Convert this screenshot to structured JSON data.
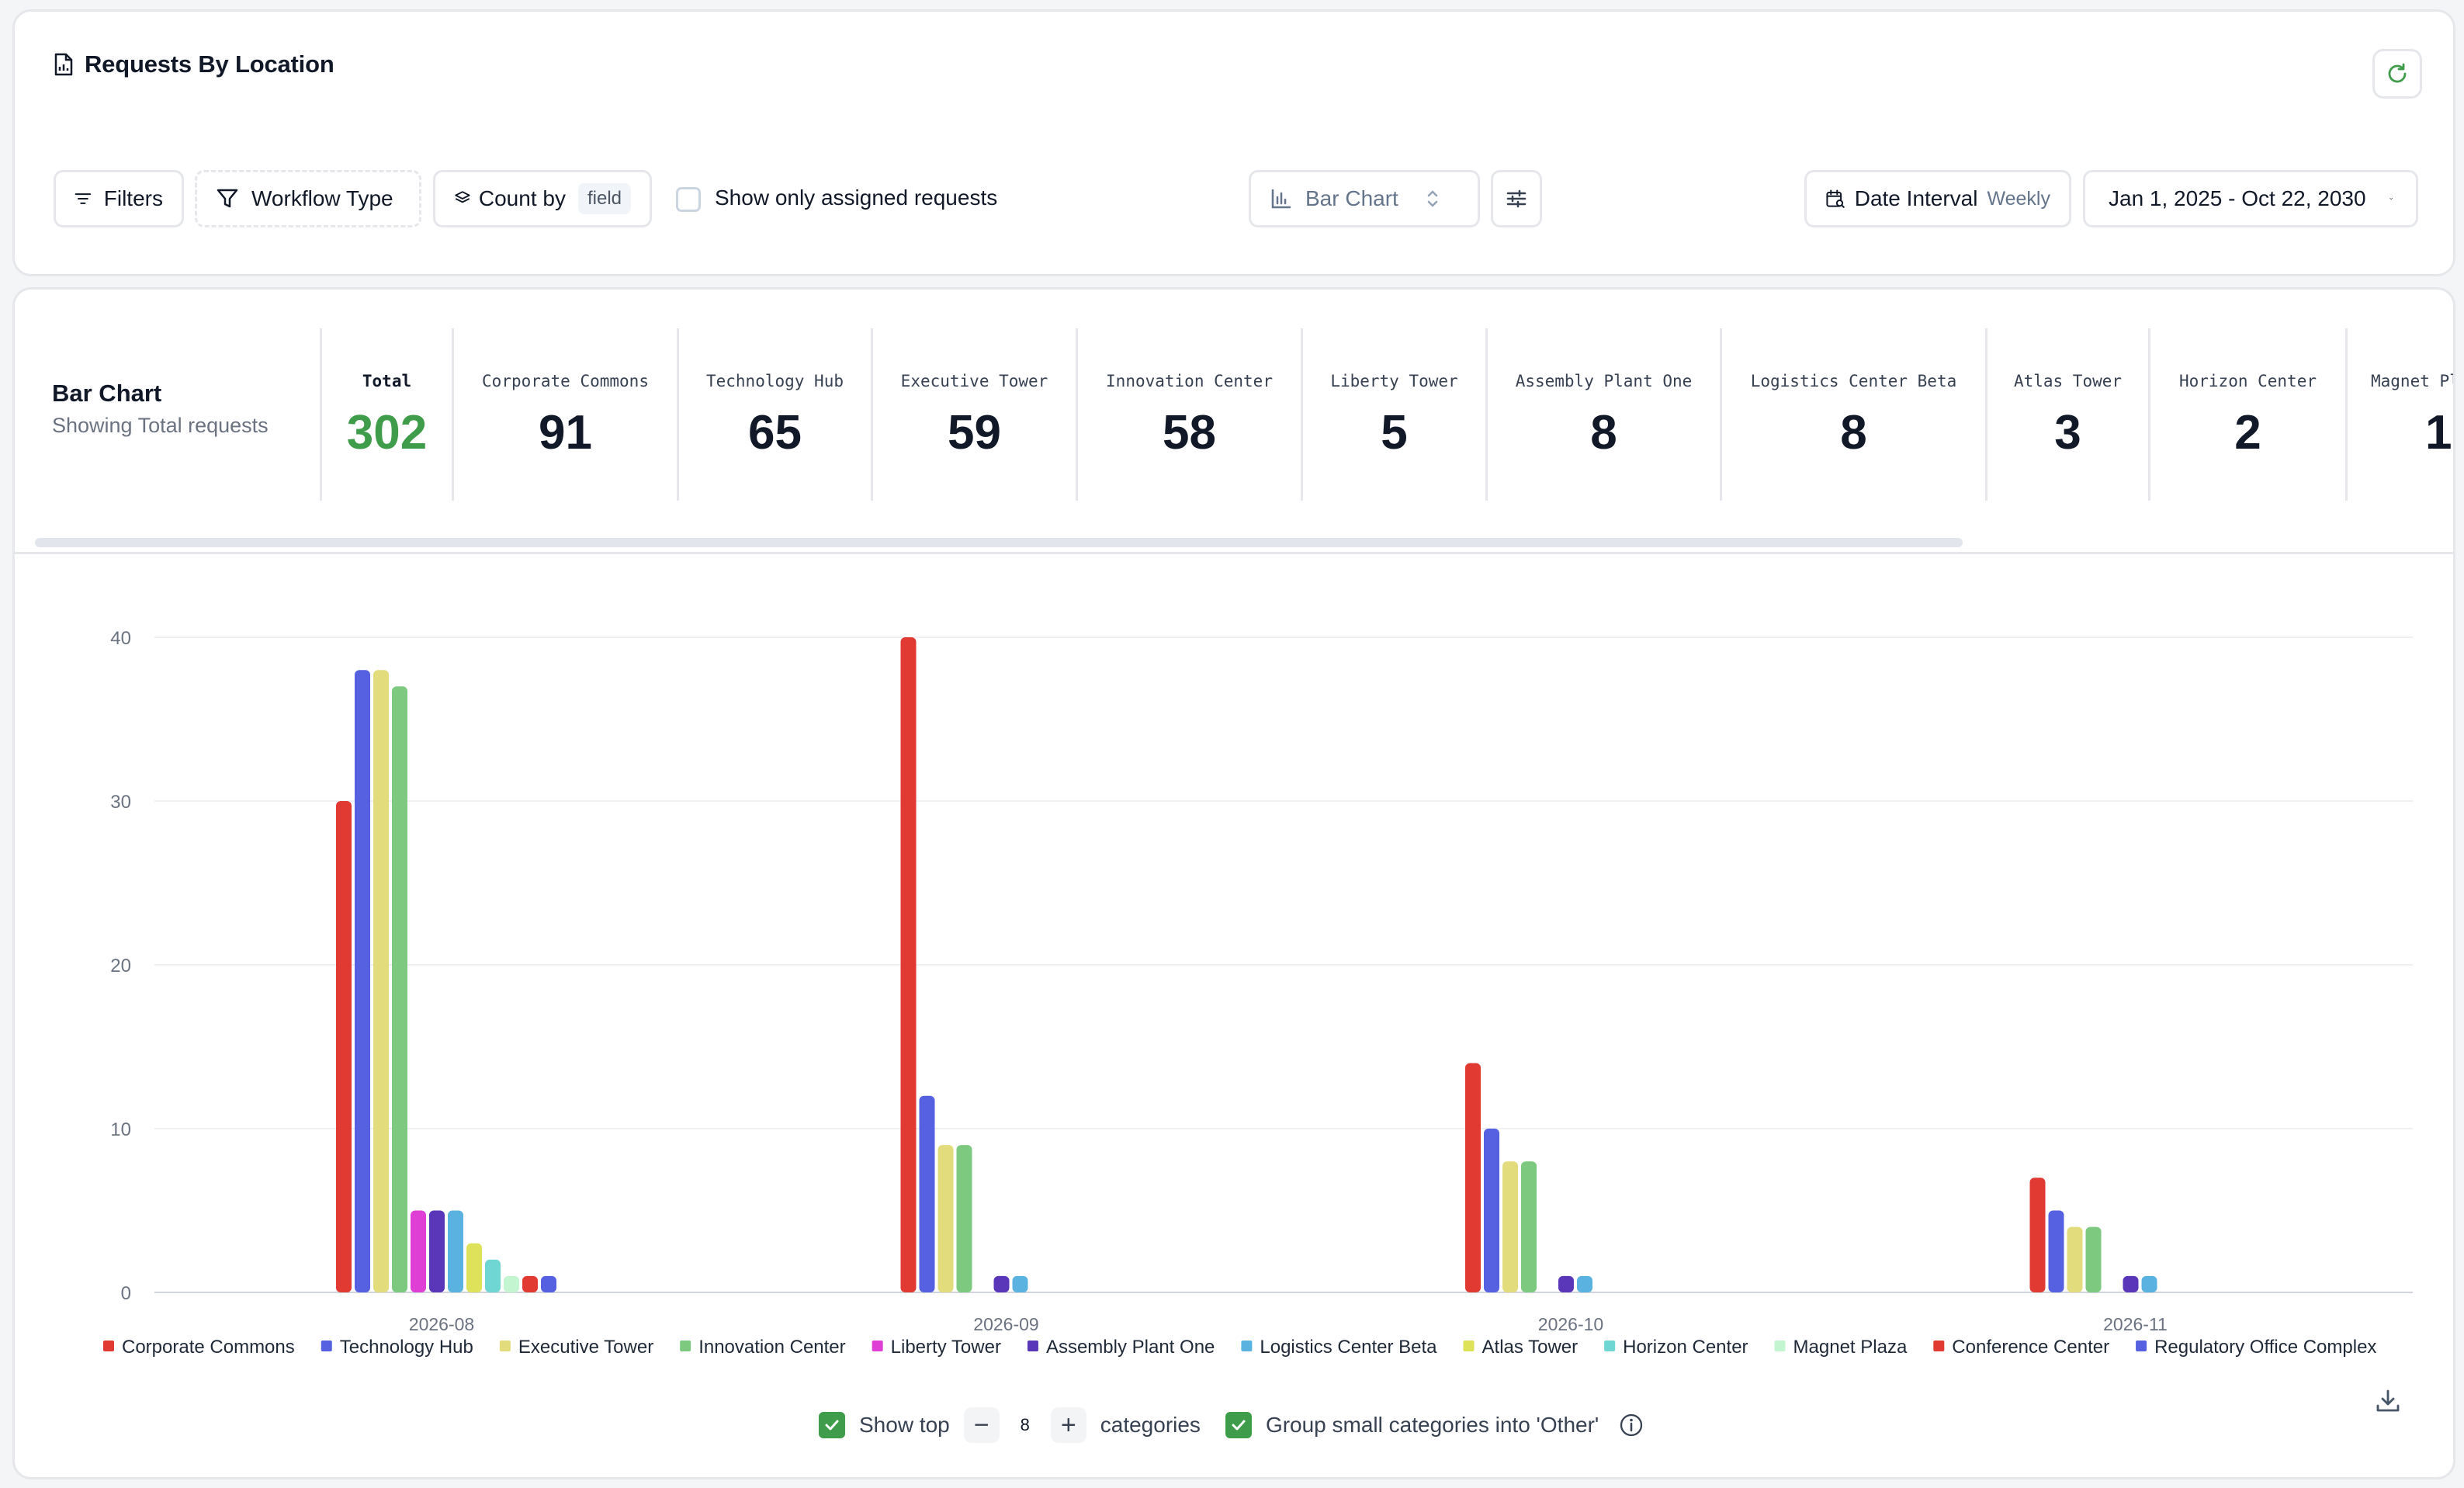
{
  "page": {
    "title": "Requests By Location"
  },
  "toolbar": {
    "filters_label": "Filters",
    "workflow_type_label": "Workflow Type",
    "count_by_label": "Count by",
    "count_by_field": "field",
    "show_assigned_label": "Show only assigned requests",
    "chart_type_label": "Bar Chart",
    "date_interval_label": "Date Interval",
    "date_interval_value": "Weekly",
    "date_range": "Jan 1, 2025 - Oct 22, 2030"
  },
  "summary": {
    "title": "Bar Chart",
    "subtitle": "Showing Total requests",
    "stats": [
      {
        "label": "Total",
        "value": "302"
      },
      {
        "label": "Corporate Commons",
        "value": "91"
      },
      {
        "label": "Technology Hub",
        "value": "65"
      },
      {
        "label": "Executive Tower",
        "value": "59"
      },
      {
        "label": "Innovation Center",
        "value": "58"
      },
      {
        "label": "Liberty Tower",
        "value": "5"
      },
      {
        "label": "Assembly Plant One",
        "value": "8"
      },
      {
        "label": "Logistics Center Beta",
        "value": "8"
      },
      {
        "label": "Atlas Tower",
        "value": "3"
      },
      {
        "label": "Horizon Center",
        "value": "2"
      },
      {
        "label": "Magnet Plaza",
        "value": "1"
      }
    ]
  },
  "chart_data": {
    "type": "bar",
    "categories": [
      "2026-08",
      "2026-09",
      "2026-10",
      "2026-11"
    ],
    "ylim": [
      0,
      40
    ],
    "yticks": [
      0,
      10,
      20,
      30,
      40
    ],
    "grid": true,
    "legend_position": "bottom",
    "series": [
      {
        "name": "Corporate Commons",
        "color": "#e03a32",
        "values": [
          30,
          40,
          14,
          7
        ]
      },
      {
        "name": "Technology Hub",
        "color": "#5561e0",
        "values": [
          38,
          12,
          10,
          5
        ]
      },
      {
        "name": "Executive Tower",
        "color": "#e3dc7c",
        "values": [
          38,
          9,
          8,
          4
        ]
      },
      {
        "name": "Innovation Center",
        "color": "#7cc97f",
        "values": [
          37,
          9,
          8,
          4
        ]
      },
      {
        "name": "Liberty Tower",
        "color": "#e03fd6",
        "values": [
          5,
          0,
          0,
          0
        ]
      },
      {
        "name": "Assembly Plant One",
        "color": "#5a36b8",
        "values": [
          5,
          1,
          1,
          1
        ]
      },
      {
        "name": "Logistics Center Beta",
        "color": "#5ab2e0",
        "values": [
          5,
          1,
          1,
          1
        ]
      },
      {
        "name": "Atlas Tower",
        "color": "#dde25a",
        "values": [
          3,
          0,
          0,
          0
        ]
      },
      {
        "name": "Horizon Center",
        "color": "#6fd6d3",
        "values": [
          2,
          0,
          0,
          0
        ]
      },
      {
        "name": "Magnet Plaza",
        "color": "#c4f5d1",
        "values": [
          1,
          0,
          0,
          0
        ]
      },
      {
        "name": "Conference Center",
        "color": "#e03a32",
        "values": [
          1,
          0,
          0,
          0
        ]
      },
      {
        "name": "Regulatory Office Complex",
        "color": "#5561e0",
        "values": [
          1,
          0,
          0,
          0
        ]
      }
    ]
  },
  "footer": {
    "show_top_label": "Show top",
    "top_count": "8",
    "categories_label": "categories",
    "group_label": "Group small categories into 'Other'"
  }
}
